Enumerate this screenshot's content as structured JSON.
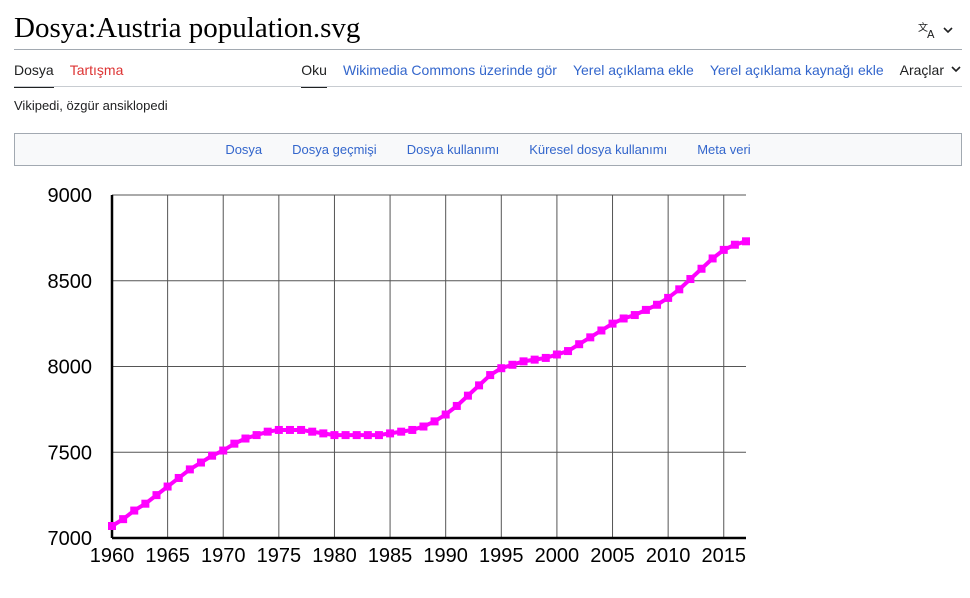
{
  "header": {
    "title": "Dosya:Austria population.svg",
    "language_icon": "translate-icon"
  },
  "tabs": {
    "left": [
      "Dosya",
      "Tartışma"
    ],
    "right": [
      "Oku",
      "Wikimedia Commons üzerinde gör",
      "Yerel açıklama ekle",
      "Yerel açıklama kaynağı ekle"
    ],
    "tools_label": "Araçlar"
  },
  "tagline": "Vikipedi, özgür ansiklopedi",
  "file_toc": [
    "Dosya",
    "Dosya geçmişi",
    "Dosya kullanımı",
    "Küresel dosya kullanımı",
    "Meta veri"
  ],
  "colors": {
    "link": "#3366cc",
    "talk_link": "#dd3333",
    "series": "#ff00ff"
  },
  "chart_data": {
    "type": "line",
    "title": "",
    "xlabel": "",
    "ylabel": "",
    "xlim": [
      1960,
      2017
    ],
    "ylim": [
      7000,
      9000
    ],
    "x_ticks": [
      1960,
      1965,
      1970,
      1975,
      1980,
      1985,
      1990,
      1995,
      2000,
      2005,
      2010,
      2015
    ],
    "y_ticks": [
      7000,
      7500,
      8000,
      8500,
      9000
    ],
    "grid": true,
    "series": [
      {
        "x": [
          1960,
          1961,
          1962,
          1963,
          1964,
          1965,
          1966,
          1967,
          1968,
          1969,
          1970,
          1971,
          1972,
          1973,
          1974,
          1975,
          1976,
          1977,
          1978,
          1979,
          1980,
          1981,
          1982,
          1983,
          1984,
          1985,
          1986,
          1987,
          1988,
          1989,
          1990,
          1991,
          1992,
          1993,
          1994,
          1995,
          1996,
          1997,
          1998,
          1999,
          2000,
          2001,
          2002,
          2003,
          2004,
          2005,
          2006,
          2007,
          2008,
          2009,
          2010,
          2011,
          2012,
          2013,
          2014,
          2015,
          2016,
          2017
        ],
        "values": [
          7070,
          7110,
          7160,
          7200,
          7250,
          7300,
          7350,
          7400,
          7440,
          7480,
          7510,
          7550,
          7580,
          7600,
          7620,
          7630,
          7630,
          7630,
          7620,
          7610,
          7600,
          7600,
          7600,
          7600,
          7600,
          7610,
          7620,
          7630,
          7650,
          7680,
          7720,
          7770,
          7830,
          7890,
          7950,
          7990,
          8010,
          8030,
          8040,
          8050,
          8070,
          8090,
          8130,
          8170,
          8210,
          8250,
          8280,
          8300,
          8330,
          8360,
          8400,
          8450,
          8510,
          8570,
          8630,
          8680,
          8710,
          8730
        ]
      }
    ]
  }
}
